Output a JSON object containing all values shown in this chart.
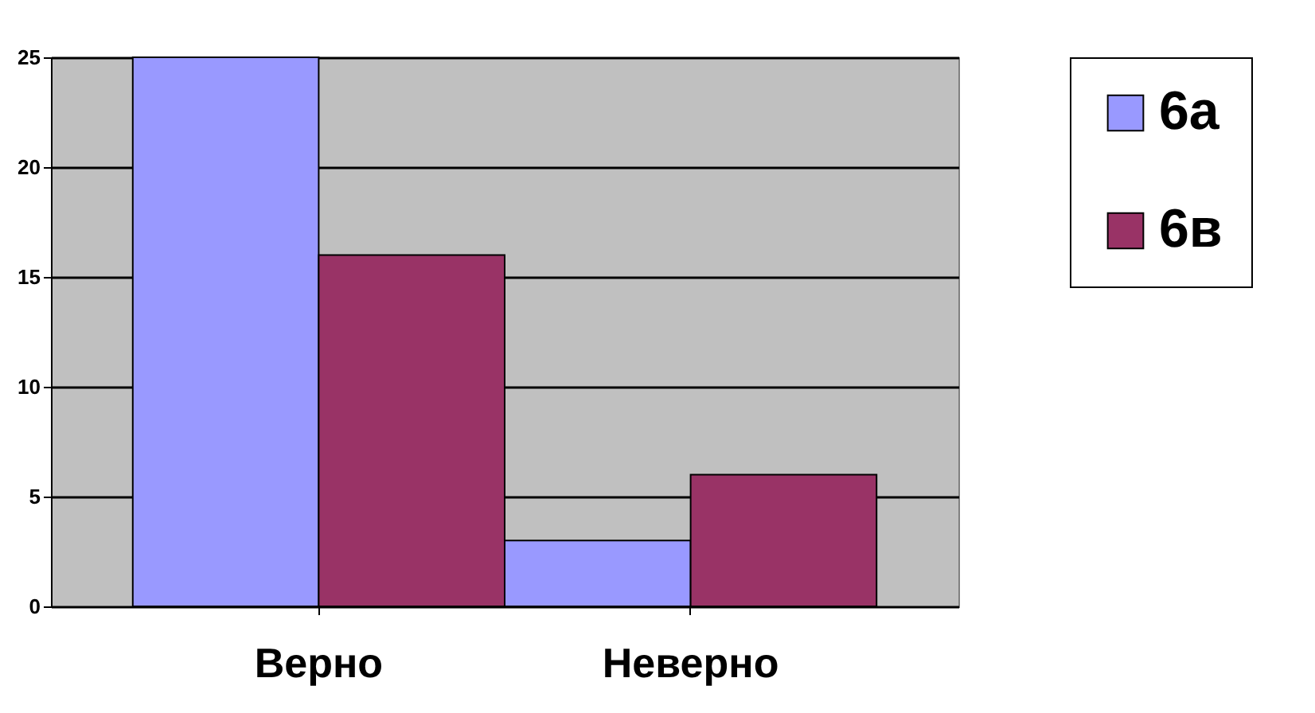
{
  "chart_data": {
    "type": "bar",
    "categories": [
      "Верно",
      "Неверно"
    ],
    "series": [
      {
        "name": "6а",
        "color": "#9999ff",
        "values": [
          25,
          3
        ]
      },
      {
        "name": "6в",
        "color": "#993366",
        "values": [
          16,
          6
        ]
      }
    ],
    "ylim": [
      0,
      25
    ],
    "yticks": [
      0,
      5,
      10,
      15,
      20,
      25
    ],
    "grid": "y",
    "legend": "right"
  }
}
